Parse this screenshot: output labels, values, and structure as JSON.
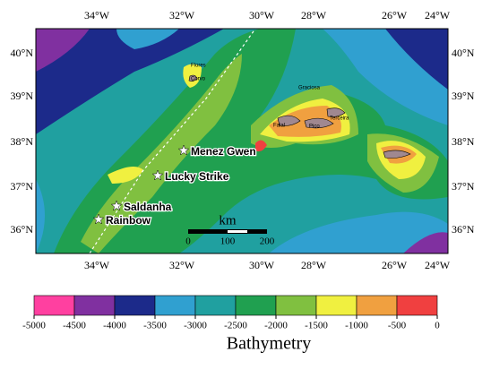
{
  "map": {
    "lon_labels": [
      "34°W",
      "32°W",
      "30°W",
      "28°W",
      "26°W",
      "24°W"
    ],
    "lat_labels": [
      "40°N",
      "39°N",
      "38°N",
      "37°N",
      "36°N"
    ],
    "sites": [
      "Menez Gwen",
      "Lucky Strike",
      "Saldanha",
      "Rainbow"
    ],
    "islands": [
      "Flores",
      "Corvo",
      "Graciosa",
      "Faial",
      "Pico",
      "Terceira"
    ],
    "scale_bar": {
      "unit": "km",
      "ticks": [
        0,
        100,
        200
      ]
    }
  },
  "colorbar": {
    "title": "Bathymetry",
    "ticks": [
      -5000,
      -4500,
      -4000,
      -3500,
      -3000,
      -2500,
      -2000,
      -1500,
      -1000,
      -500,
      0
    ],
    "colors": [
      "#ff40a0",
      "#8030a0",
      "#1c2a8a",
      "#30a0d0",
      "#20a0a0",
      "#20a050",
      "#80c040",
      "#f0f040",
      "#f0a040",
      "#f04040"
    ]
  }
}
